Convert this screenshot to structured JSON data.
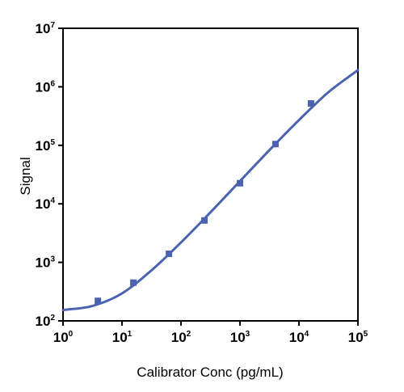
{
  "chart_data": {
    "type": "scatter",
    "xlabel": "Calibrator Conc (pg/mL)",
    "ylabel": "Signal",
    "x_scale": "log",
    "y_scale": "log",
    "xlim": [
      1,
      100000
    ],
    "ylim": [
      100,
      10000000
    ],
    "x_ticks": [
      {
        "base": "10",
        "exp": "0"
      },
      {
        "base": "10",
        "exp": "1"
      },
      {
        "base": "10",
        "exp": "2"
      },
      {
        "base": "10",
        "exp": "3"
      },
      {
        "base": "10",
        "exp": "4"
      },
      {
        "base": "10",
        "exp": "5"
      }
    ],
    "y_ticks": [
      {
        "base": "10",
        "exp": "2"
      },
      {
        "base": "10",
        "exp": "3"
      },
      {
        "base": "10",
        "exp": "4"
      },
      {
        "base": "10",
        "exp": "5"
      },
      {
        "base": "10",
        "exp": "6"
      },
      {
        "base": "10",
        "exp": "7"
      }
    ],
    "grid": false,
    "series": [
      {
        "type": "scatter",
        "marker": "square",
        "x": [
          3.9,
          15.6,
          62.5,
          250,
          1000,
          4000,
          16000
        ],
        "y": [
          220,
          450,
          1400,
          5200,
          22500,
          105000,
          520000
        ]
      },
      {
        "type": "line",
        "x": [
          1,
          3.16,
          10,
          31.6,
          100,
          316,
          1000,
          3162,
          10000,
          31623,
          100000
        ],
        "y": [
          153,
          180,
          295,
          730,
          2190,
          7170,
          24400,
          83000,
          270000,
          810000,
          1930000
        ]
      }
    ],
    "colors": {
      "series": "#4a63b0",
      "axis": "#000000"
    }
  }
}
